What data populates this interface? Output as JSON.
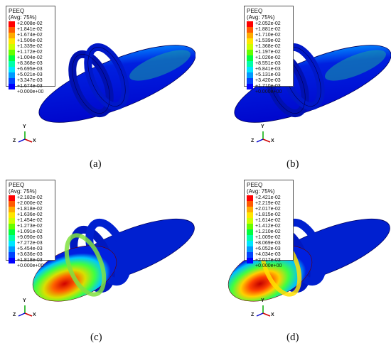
{
  "legend_colors": [
    "#ff0000",
    "#ff5a00",
    "#ffaa00",
    "#ffe600",
    "#ccff00",
    "#66ff00",
    "#00ff40",
    "#00ffaa",
    "#00e6ff",
    "#0099ff",
    "#0044ff",
    "#0000ff"
  ],
  "panels": [
    {
      "caption": "(a)",
      "legend": {
        "variable": "PEEQ",
        "avg": "(Avg: 75%)",
        "values": [
          "+2.008e-02",
          "+1.841e-02",
          "+1.674e-02",
          "+1.506e-02",
          "+1.339e-02",
          "+1.172e-02",
          "+1.004e-02",
          "+8.368e-03",
          "+6.695e-03",
          "+5.021e-03",
          "+3.347e-03",
          "+1.674e-03",
          "+0.000e+00"
        ]
      },
      "triad": {
        "y": "Y",
        "z": "Z",
        "x": "X"
      }
    },
    {
      "caption": "(b)",
      "legend": {
        "variable": "PEEQ",
        "avg": "(Avg: 75%)",
        "values": [
          "+2.052e-02",
          "+1.881e-02",
          "+1.710e-02",
          "+1.539e-02",
          "+1.368e-02",
          "+1.197e-02",
          "+1.026e-02",
          "+8.551e-03",
          "+6.841e-03",
          "+5.131e-03",
          "+3.420e-03",
          "+1.710e-03",
          "+0.000e+00"
        ]
      },
      "triad": {
        "y": "Y",
        "z": "Z",
        "x": "X"
      }
    },
    {
      "caption": "(c)",
      "legend": {
        "variable": "PEEQ",
        "avg": "(Avg: 75%)",
        "values": [
          "+2.182e-02",
          "+2.000e-02",
          "+1.818e-02",
          "+1.636e-02",
          "+1.454e-02",
          "+1.273e-02",
          "+1.091e-02",
          "+9.090e-03",
          "+7.272e-03",
          "+5.454e-03",
          "+3.636e-03",
          "+1.818e-03",
          "+0.000e+00"
        ]
      },
      "triad": {
        "y": "Y",
        "z": "Z",
        "x": "X"
      }
    },
    {
      "caption": "(d)",
      "legend": {
        "variable": "PEEQ",
        "avg": "(Avg: 75%)",
        "values": [
          "+2.421e-02",
          "+2.219e-02",
          "+2.017e-02",
          "+1.815e-02",
          "+1.614e-02",
          "+1.412e-02",
          "+1.210e-02",
          "+1.009e-02",
          "+8.069e-03",
          "+6.052e-03",
          "+4.034e-03",
          "+2.017e-03",
          "+0.000e+00"
        ]
      },
      "triad": {
        "y": "Y",
        "z": "Z",
        "x": "X"
      }
    }
  ]
}
